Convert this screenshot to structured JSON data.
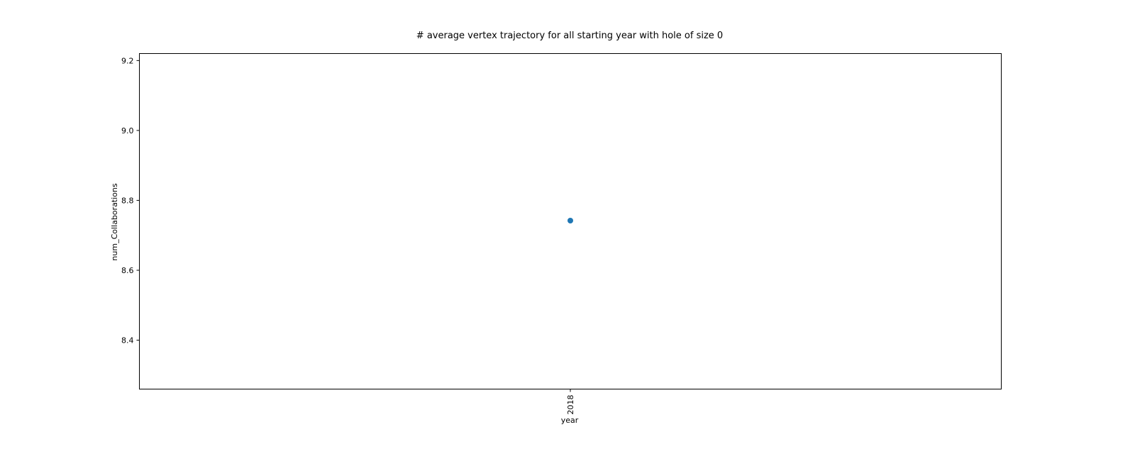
{
  "chart_data": {
    "type": "scatter",
    "title": "# average vertex trajectory for all starting year with hole of size 0",
    "xlabel": "year",
    "ylabel": "num_Collaborations",
    "categories": [
      "2018"
    ],
    "x_tick_labels": [
      "2018"
    ],
    "y_ticks": [
      8.4,
      8.6,
      8.8,
      9.0,
      9.2
    ],
    "y_tick_labels": [
      "8.4",
      "8.6",
      "8.8",
      "9.0",
      "9.2"
    ],
    "ylim": [
      8.26,
      9.22
    ],
    "series": [
      {
        "values": [
          8.742
        ],
        "color": "#1f77b4"
      }
    ],
    "grid": false,
    "legend": "none"
  }
}
